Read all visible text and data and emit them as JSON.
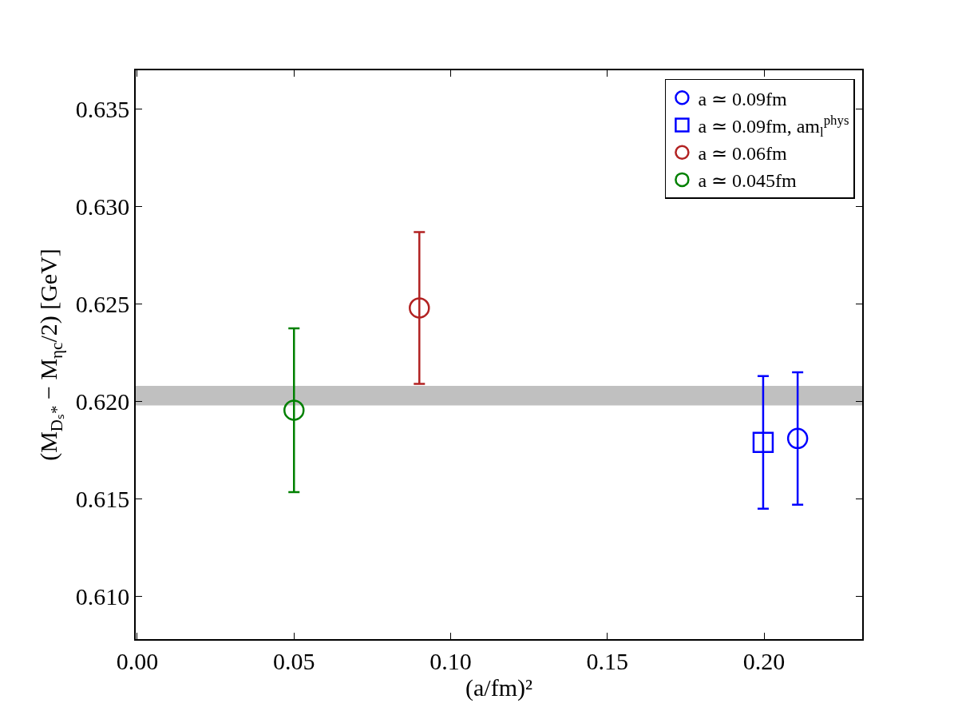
{
  "chart_data": {
    "type": "scatter",
    "xlabel": "(a/fm)²",
    "ylabel": "(M$_{Dₛ*}$ − M$_{ηc}$/2) [GeV]",
    "xlim": [
      -0.0005,
      0.2313
    ],
    "ylim": [
      0.6078,
      0.637
    ],
    "xticks": [
      {
        "value": 0,
        "label": "0.00"
      },
      {
        "value": 0.05,
        "label": "0.05"
      },
      {
        "value": 0.1,
        "label": "0.10"
      },
      {
        "value": 0.15,
        "label": "0.15"
      },
      {
        "value": 0.2,
        "label": "0.20"
      }
    ],
    "yticks": [
      {
        "value": 0.61,
        "label": "0.610"
      },
      {
        "value": 0.615,
        "label": "0.615"
      },
      {
        "value": 0.62,
        "label": "0.620"
      },
      {
        "value": 0.625,
        "label": "0.625"
      },
      {
        "value": 0.63,
        "label": "0.630"
      },
      {
        "value": 0.635,
        "label": "0.635"
      }
    ],
    "grid": false,
    "legend": "top right",
    "bands": [
      {
        "axis": "y",
        "from": 0.6198,
        "to": 0.6208,
        "color": "#c0c0c0"
      }
    ],
    "series": [
      {
        "name": "a ≃ 0.09fm",
        "color": "#0000ff",
        "marker": "circle",
        "x": [
          0.2107
        ],
        "values": [
          0.6181
        ],
        "errors": [
          0.0034
        ]
      },
      {
        "name": "a ≃ 0.09fm, am$_{l}$$^{phys}$",
        "color": "#0000ff",
        "marker": "square",
        "x": [
          0.1997
        ],
        "values": [
          0.6179
        ],
        "errors": [
          0.0034
        ]
      },
      {
        "name": "a ≃ 0.06fm",
        "color": "#b22222",
        "marker": "circle",
        "x": [
          0.09
        ],
        "values": [
          0.6248
        ],
        "errors": [
          0.0039
        ]
      },
      {
        "name": "a ≃ 0.045fm",
        "color": "#008000",
        "marker": "circle",
        "x": [
          0.05
        ],
        "values": [
          0.61955
        ],
        "errors": [
          0.0042
        ]
      }
    ]
  }
}
